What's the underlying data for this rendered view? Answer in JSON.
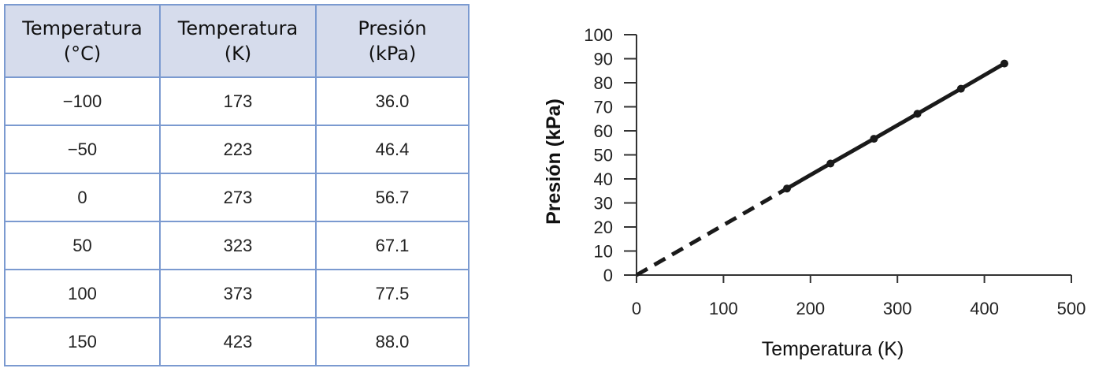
{
  "table": {
    "headers": [
      {
        "line1": "Temperatura",
        "line2": "(°C)"
      },
      {
        "line1": "Temperatura",
        "line2": "(K)"
      },
      {
        "line1": "Presión",
        "line2": "(kPa)"
      }
    ],
    "rows": [
      [
        "−100",
        "173",
        "36.0"
      ],
      [
        "−50",
        "223",
        "46.4"
      ],
      [
        "0",
        "273",
        "56.7"
      ],
      [
        "50",
        "323",
        "67.1"
      ],
      [
        "100",
        "373",
        "77.5"
      ],
      [
        "150",
        "423",
        "88.0"
      ]
    ]
  },
  "chart_data": {
    "type": "line",
    "xlabel": "Temperatura (K)",
    "ylabel": "Presión (kPa)",
    "xlim": [
      0,
      500
    ],
    "ylim": [
      0,
      100
    ],
    "xticks": [
      "0",
      "100",
      "200",
      "300",
      "400",
      "500"
    ],
    "yticks": [
      "0",
      "10",
      "20",
      "30",
      "40",
      "50",
      "60",
      "70",
      "80",
      "90",
      "100"
    ],
    "series": [
      {
        "x": [
          173,
          223,
          273,
          323,
          373,
          423
        ],
        "y": [
          36.0,
          46.4,
          56.7,
          67.1,
          77.5,
          88.0
        ],
        "style": "solid",
        "markers": true
      },
      {
        "x": [
          0,
          173
        ],
        "y": [
          0,
          36.0
        ],
        "style": "dashed",
        "markers": false
      }
    ],
    "grid": false,
    "colors": {
      "line": "#1a1a1a",
      "axis": "#333333"
    }
  }
}
